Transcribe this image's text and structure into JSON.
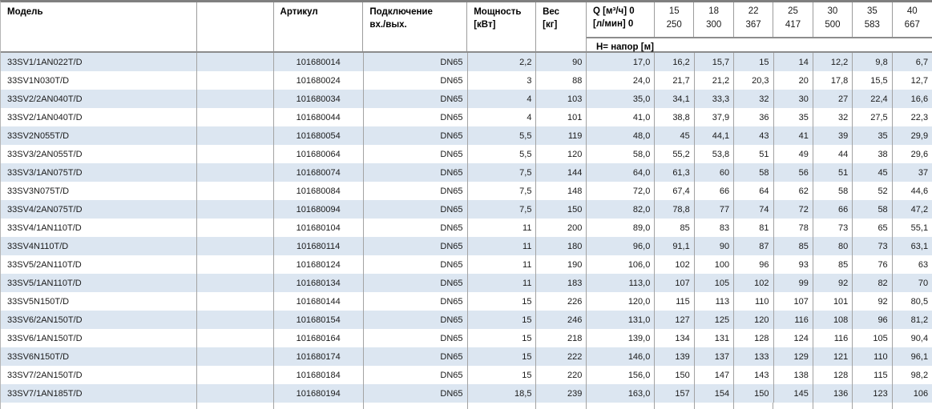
{
  "header": {
    "model_label": "Модель",
    "article_label": "Артикул",
    "connection_label_line1": "Подключение",
    "connection_label_line2": "вх./вых.",
    "power_label_line1": "Мощность",
    "power_label_line2": "[кВт]",
    "weight_label_line1": "Вес",
    "weight_label_line2": "[кг]",
    "q_label_line1": "Q [м³/ч] 0",
    "q_label_line2": "[л/мин] 0",
    "flow_columns": [
      {
        "m3h": "15",
        "lmin": "250"
      },
      {
        "m3h": "18",
        "lmin": "300"
      },
      {
        "m3h": "22",
        "lmin": "367"
      },
      {
        "m3h": "25",
        "lmin": "417"
      },
      {
        "m3h": "30",
        "lmin": "500"
      },
      {
        "m3h": "35",
        "lmin": "583"
      },
      {
        "m3h": "40",
        "lmin": "667"
      }
    ],
    "subheader_label": "H= напор [м]"
  },
  "rows": [
    {
      "model": "33SV1/1AN022T/D",
      "article": "101680014",
      "connection": "DN65",
      "power": "2,2",
      "weight": "90",
      "head": [
        "17,0",
        "16,2",
        "15,7",
        "15",
        "14",
        "12,2",
        "9,8",
        "6,7"
      ]
    },
    {
      "model": "33SV1N030T/D",
      "article": "101680024",
      "connection": "DN65",
      "power": "3",
      "weight": "88",
      "head": [
        "24,0",
        "21,7",
        "21,2",
        "20,3",
        "20",
        "17,8",
        "15,5",
        "12,7"
      ]
    },
    {
      "model": "33SV2/2AN040T/D",
      "article": "101680034",
      "connection": "DN65",
      "power": "4",
      "weight": "103",
      "head": [
        "35,0",
        "34,1",
        "33,3",
        "32",
        "30",
        "27",
        "22,4",
        "16,6"
      ]
    },
    {
      "model": "33SV2/1AN040T/D",
      "article": "101680044",
      "connection": "DN65",
      "power": "4",
      "weight": "101",
      "head": [
        "41,0",
        "38,8",
        "37,9",
        "36",
        "35",
        "32",
        "27,5",
        "22,3"
      ]
    },
    {
      "model": "33SV2N055T/D",
      "article": "101680054",
      "connection": "DN65",
      "power": "5,5",
      "weight": "119",
      "head": [
        "48,0",
        "45",
        "44,1",
        "43",
        "41",
        "39",
        "35",
        "29,9"
      ]
    },
    {
      "model": "33SV3/2AN055T/D",
      "article": "101680064",
      "connection": "DN65",
      "power": "5,5",
      "weight": "120",
      "head": [
        "58,0",
        "55,2",
        "53,8",
        "51",
        "49",
        "44",
        "38",
        "29,6"
      ]
    },
    {
      "model": "33SV3/1AN075T/D",
      "article": "101680074",
      "connection": "DN65",
      "power": "7,5",
      "weight": "144",
      "head": [
        "64,0",
        "61,3",
        "60",
        "58",
        "56",
        "51",
        "45",
        "37"
      ]
    },
    {
      "model": "33SV3N075T/D",
      "article": "101680084",
      "connection": "DN65",
      "power": "7,5",
      "weight": "148",
      "head": [
        "72,0",
        "67,4",
        "66",
        "64",
        "62",
        "58",
        "52",
        "44,6"
      ]
    },
    {
      "model": "33SV4/2AN075T/D",
      "article": "101680094",
      "connection": "DN65",
      "power": "7,5",
      "weight": "150",
      "head": [
        "82,0",
        "78,8",
        "77",
        "74",
        "72",
        "66",
        "58",
        "47,2"
      ]
    },
    {
      "model": "33SV4/1AN110T/D",
      "article": "101680104",
      "connection": "DN65",
      "power": "11",
      "weight": "200",
      "head": [
        "89,0",
        "85",
        "83",
        "81",
        "78",
        "73",
        "65",
        "55,1"
      ]
    },
    {
      "model": "33SV4N110T/D",
      "article": "101680114",
      "connection": "DN65",
      "power": "11",
      "weight": "180",
      "head": [
        "96,0",
        "91,1",
        "90",
        "87",
        "85",
        "80",
        "73",
        "63,1"
      ]
    },
    {
      "model": "33SV5/2AN110T/D",
      "article": "101680124",
      "connection": "DN65",
      "power": "11",
      "weight": "190",
      "head": [
        "106,0",
        "102",
        "100",
        "96",
        "93",
        "85",
        "76",
        "63"
      ]
    },
    {
      "model": "33SV5/1AN110T/D",
      "article": "101680134",
      "connection": "DN65",
      "power": "11",
      "weight": "183",
      "head": [
        "113,0",
        "107",
        "105",
        "102",
        "99",
        "92",
        "82",
        "70"
      ]
    },
    {
      "model": "33SV5N150T/D",
      "article": "101680144",
      "connection": "DN65",
      "power": "15",
      "weight": "226",
      "head": [
        "120,0",
        "115",
        "113",
        "110",
        "107",
        "101",
        "92",
        "80,5"
      ]
    },
    {
      "model": "33SV6/2AN150T/D",
      "article": "101680154",
      "connection": "DN65",
      "power": "15",
      "weight": "246",
      "head": [
        "131,0",
        "127",
        "125",
        "120",
        "116",
        "108",
        "96",
        "81,2"
      ]
    },
    {
      "model": "33SV6/1AN150T/D",
      "article": "101680164",
      "connection": "DN65",
      "power": "15",
      "weight": "218",
      "head": [
        "139,0",
        "134",
        "131",
        "128",
        "124",
        "116",
        "105",
        "90,4"
      ]
    },
    {
      "model": "33SV6N150T/D",
      "article": "101680174",
      "connection": "DN65",
      "power": "15",
      "weight": "222",
      "head": [
        "146,0",
        "139",
        "137",
        "133",
        "129",
        "121",
        "110",
        "96,1"
      ]
    },
    {
      "model": "33SV7/2AN150T/D",
      "article": "101680184",
      "connection": "DN65",
      "power": "15",
      "weight": "220",
      "head": [
        "156,0",
        "150",
        "147",
        "143",
        "138",
        "128",
        "115",
        "98,2"
      ]
    },
    {
      "model": "33SV7/1AN185T/D",
      "article": "101680194",
      "connection": "DN65",
      "power": "18,5",
      "weight": "239",
      "head": [
        "163,0",
        "157",
        "154",
        "150",
        "145",
        "136",
        "123",
        "106"
      ]
    }
  ],
  "colors": {
    "row_alternate": "#dce6f1",
    "grid_line": "#a3a3a3",
    "header_border": "#8c8c8c",
    "top_border": "#7f7f7f",
    "text": "#1a1a1a"
  }
}
